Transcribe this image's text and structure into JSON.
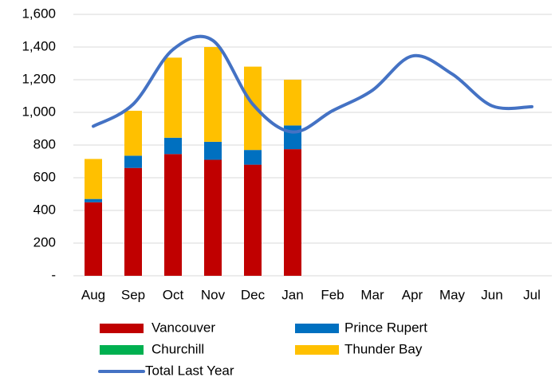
{
  "chart_data": {
    "type": "bar",
    "stacked": true,
    "categories": [
      "Aug",
      "Sep",
      "Oct",
      "Nov",
      "Dec",
      "Jan",
      "Feb",
      "Mar",
      "Apr",
      "May",
      "Jun",
      "Jul"
    ],
    "series": [
      {
        "name": "Vancouver",
        "color": "#c00000",
        "values": [
          450,
          660,
          745,
          710,
          680,
          775,
          null,
          null,
          null,
          null,
          null,
          null
        ]
      },
      {
        "name": "Prince Rupert",
        "color": "#0070c0",
        "values": [
          20,
          75,
          100,
          110,
          90,
          145,
          null,
          null,
          null,
          null,
          null,
          null
        ]
      },
      {
        "name": "Churchill",
        "color": "#00b050",
        "values": [
          0,
          0,
          0,
          0,
          0,
          0,
          null,
          null,
          null,
          null,
          null,
          null
        ]
      },
      {
        "name": "Thunder Bay",
        "color": "#ffc000",
        "values": [
          245,
          275,
          490,
          580,
          510,
          280,
          null,
          null,
          null,
          null,
          null,
          null
        ]
      },
      {
        "name": "Total Last Year",
        "color": "#4472c4",
        "type": "line",
        "smooth": true,
        "values": [
          915,
          1050,
          1385,
          1440,
          1050,
          880,
          1010,
          1135,
          1345,
          1235,
          1040,
          1035
        ]
      }
    ],
    "ylim": [
      0,
      1600
    ],
    "yticks": [
      {
        "value": 0,
        "label": "-"
      },
      200,
      400,
      600,
      800,
      {
        "value": 1000,
        "label": "1,000"
      },
      {
        "value": 1200,
        "label": "1,200"
      },
      {
        "value": 1400,
        "label": "1,400"
      },
      {
        "value": 1600,
        "label": "1,600"
      }
    ],
    "grid": true,
    "legend": "bottom"
  }
}
